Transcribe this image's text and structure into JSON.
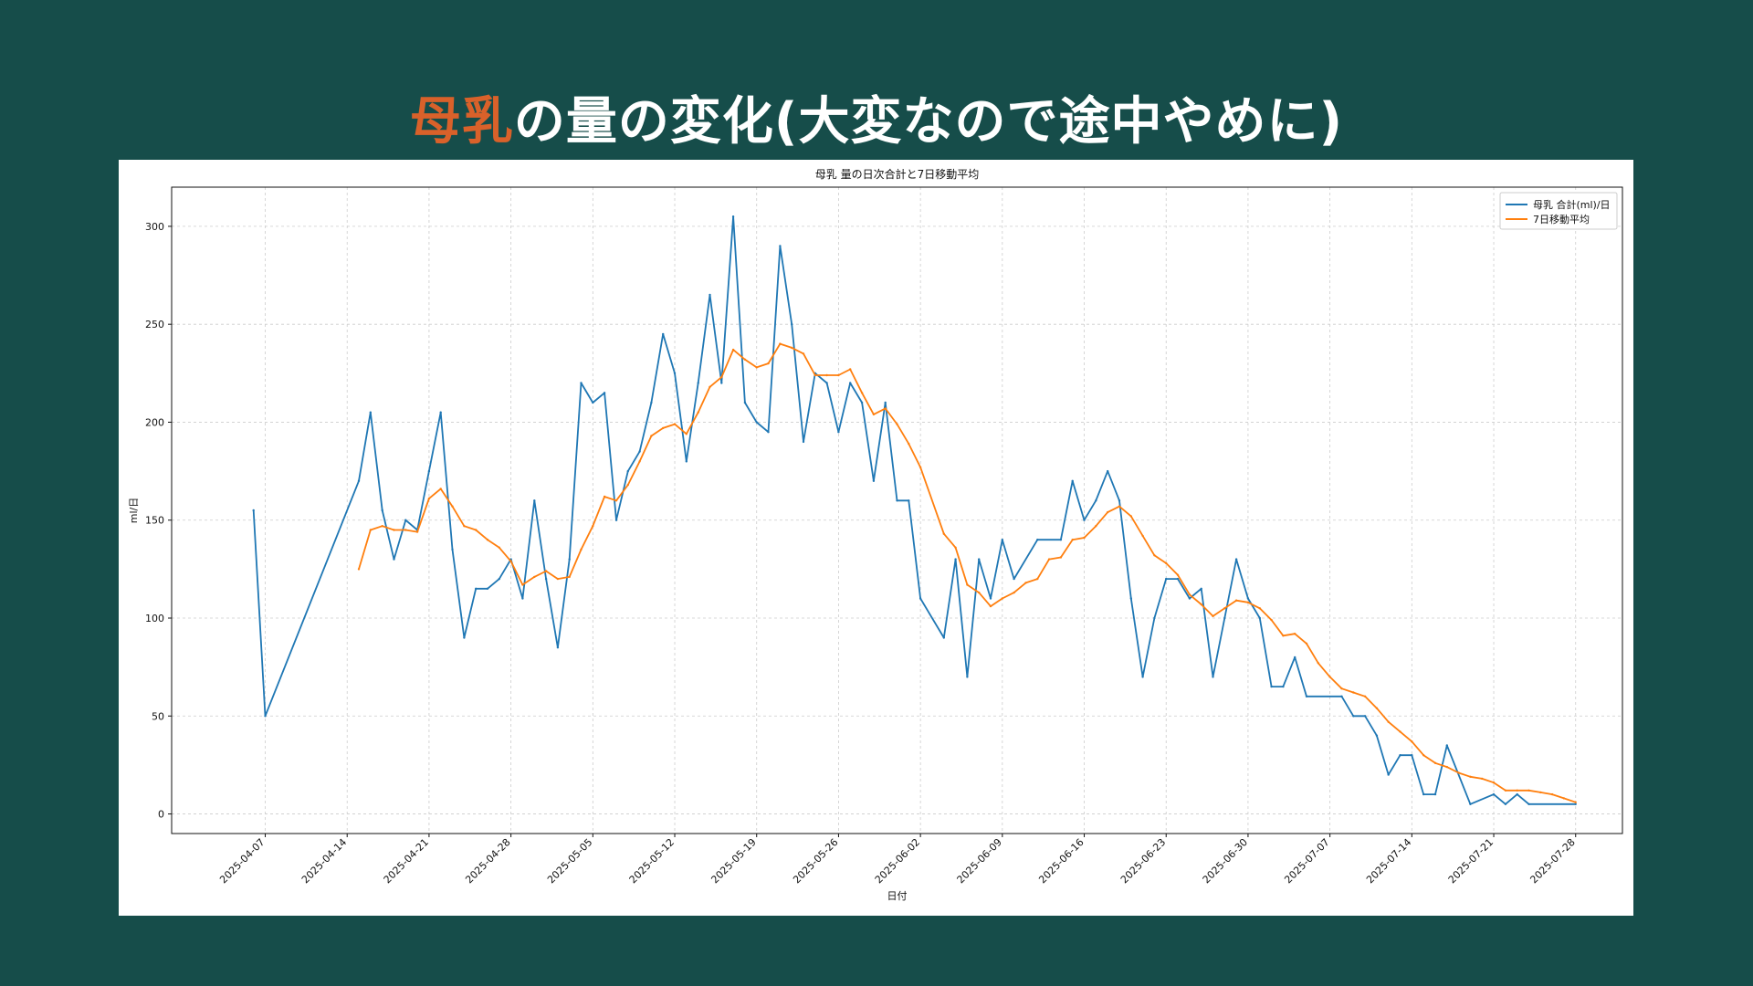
{
  "slide": {
    "title_accent": "母乳",
    "title_rest": "の量の変化(大変なので途中やめに)",
    "accent_color": "#d9612a",
    "background_color": "#164d4a"
  },
  "chart_data": {
    "type": "line",
    "title": "母乳 量の日次合計と7日移動平均",
    "xlabel": "日付",
    "ylabel": "ml/日",
    "x_range": [
      "2025-03-30",
      "2025-08-01"
    ],
    "ylim": [
      -10,
      320
    ],
    "yticks": [
      0,
      50,
      100,
      150,
      200,
      250,
      300
    ],
    "xticks": [
      "2025-04-07",
      "2025-04-14",
      "2025-04-21",
      "2025-04-28",
      "2025-05-05",
      "2025-05-12",
      "2025-05-19",
      "2025-05-26",
      "2025-06-02",
      "2025-06-09",
      "2025-06-16",
      "2025-06-23",
      "2025-06-30",
      "2025-07-07",
      "2025-07-14",
      "2025-07-21",
      "2025-07-28"
    ],
    "grid": true,
    "legend_position": "top-right",
    "series": [
      {
        "name": "母乳 合計(ml)/日",
        "color": "#1f77b4",
        "points": [
          [
            "2025-04-06",
            155
          ],
          [
            "2025-04-07",
            50
          ],
          [
            "2025-04-15",
            170
          ],
          [
            "2025-04-16",
            205
          ],
          [
            "2025-04-17",
            155
          ],
          [
            "2025-04-18",
            130
          ],
          [
            "2025-04-19",
            150
          ],
          [
            "2025-04-20",
            145
          ],
          [
            "2025-04-21",
            175
          ],
          [
            "2025-04-22",
            205
          ],
          [
            "2025-04-23",
            135
          ],
          [
            "2025-04-24",
            90
          ],
          [
            "2025-04-25",
            115
          ],
          [
            "2025-04-26",
            115
          ],
          [
            "2025-04-27",
            120
          ],
          [
            "2025-04-28",
            130
          ],
          [
            "2025-04-29",
            110
          ],
          [
            "2025-04-30",
            160
          ],
          [
            "2025-05-01",
            120
          ],
          [
            "2025-05-02",
            85
          ],
          [
            "2025-05-03",
            130
          ],
          [
            "2025-05-04",
            220
          ],
          [
            "2025-05-05",
            210
          ],
          [
            "2025-05-06",
            215
          ],
          [
            "2025-05-07",
            150
          ],
          [
            "2025-05-08",
            175
          ],
          [
            "2025-05-09",
            185
          ],
          [
            "2025-05-10",
            210
          ],
          [
            "2025-05-11",
            245
          ],
          [
            "2025-05-12",
            225
          ],
          [
            "2025-05-13",
            180
          ],
          [
            "2025-05-14",
            220
          ],
          [
            "2025-05-15",
            265
          ],
          [
            "2025-05-16",
            220
          ],
          [
            "2025-05-17",
            305
          ],
          [
            "2025-05-18",
            210
          ],
          [
            "2025-05-19",
            200
          ],
          [
            "2025-05-20",
            195
          ],
          [
            "2025-05-21",
            290
          ],
          [
            "2025-05-22",
            250
          ],
          [
            "2025-05-23",
            190
          ],
          [
            "2025-05-24",
            225
          ],
          [
            "2025-05-25",
            220
          ],
          [
            "2025-05-26",
            195
          ],
          [
            "2025-05-27",
            220
          ],
          [
            "2025-05-28",
            210
          ],
          [
            "2025-05-29",
            170
          ],
          [
            "2025-05-30",
            210
          ],
          [
            "2025-05-31",
            160
          ],
          [
            "2025-06-01",
            160
          ],
          [
            "2025-06-02",
            110
          ],
          [
            "2025-06-04",
            90
          ],
          [
            "2025-06-05",
            130
          ],
          [
            "2025-06-06",
            70
          ],
          [
            "2025-06-07",
            130
          ],
          [
            "2025-06-08",
            110
          ],
          [
            "2025-06-09",
            140
          ],
          [
            "2025-06-10",
            120
          ],
          [
            "2025-06-12",
            140
          ],
          [
            "2025-06-14",
            140
          ],
          [
            "2025-06-15",
            170
          ],
          [
            "2025-06-16",
            150
          ],
          [
            "2025-06-17",
            160
          ],
          [
            "2025-06-18",
            175
          ],
          [
            "2025-06-19",
            160
          ],
          [
            "2025-06-20",
            110
          ],
          [
            "2025-06-21",
            70
          ],
          [
            "2025-06-22",
            100
          ],
          [
            "2025-06-23",
            120
          ],
          [
            "2025-06-24",
            120
          ],
          [
            "2025-06-25",
            110
          ],
          [
            "2025-06-26",
            115
          ],
          [
            "2025-06-27",
            70
          ],
          [
            "2025-06-28",
            100
          ],
          [
            "2025-06-29",
            130
          ],
          [
            "2025-06-30",
            110
          ],
          [
            "2025-07-01",
            100
          ],
          [
            "2025-07-02",
            65
          ],
          [
            "2025-07-03",
            65
          ],
          [
            "2025-07-04",
            80
          ],
          [
            "2025-07-05",
            60
          ],
          [
            "2025-07-08",
            60
          ],
          [
            "2025-07-09",
            50
          ],
          [
            "2025-07-10",
            50
          ],
          [
            "2025-07-11",
            40
          ],
          [
            "2025-07-12",
            20
          ],
          [
            "2025-07-13",
            30
          ],
          [
            "2025-07-14",
            30
          ],
          [
            "2025-07-15",
            10
          ],
          [
            "2025-07-16",
            10
          ],
          [
            "2025-07-17",
            35
          ],
          [
            "2025-07-19",
            5
          ],
          [
            "2025-07-21",
            10
          ],
          [
            "2025-07-22",
            5
          ],
          [
            "2025-07-23",
            10
          ],
          [
            "2025-07-24",
            5
          ],
          [
            "2025-07-28",
            5
          ]
        ]
      },
      {
        "name": "7日移動平均",
        "color": "#ff7f0e",
        "points": [
          [
            "2025-04-15",
            125
          ],
          [
            "2025-04-16",
            145
          ],
          [
            "2025-04-17",
            147
          ],
          [
            "2025-04-18",
            145
          ],
          [
            "2025-04-19",
            145
          ],
          [
            "2025-04-20",
            144
          ],
          [
            "2025-04-21",
            161
          ],
          [
            "2025-04-22",
            166
          ],
          [
            "2025-04-23",
            157
          ],
          [
            "2025-04-24",
            147
          ],
          [
            "2025-04-25",
            145
          ],
          [
            "2025-04-26",
            140
          ],
          [
            "2025-04-27",
            136
          ],
          [
            "2025-04-28",
            129
          ],
          [
            "2025-04-29",
            117
          ],
          [
            "2025-04-30",
            121
          ],
          [
            "2025-05-01",
            124
          ],
          [
            "2025-05-02",
            120
          ],
          [
            "2025-05-03",
            121
          ],
          [
            "2025-05-04",
            135
          ],
          [
            "2025-05-05",
            147
          ],
          [
            "2025-05-06",
            162
          ],
          [
            "2025-05-07",
            160
          ],
          [
            "2025-05-08",
            168
          ],
          [
            "2025-05-09",
            180
          ],
          [
            "2025-05-10",
            193
          ],
          [
            "2025-05-11",
            197
          ],
          [
            "2025-05-12",
            199
          ],
          [
            "2025-05-13",
            194
          ],
          [
            "2025-05-14",
            205
          ],
          [
            "2025-05-15",
            218
          ],
          [
            "2025-05-16",
            223
          ],
          [
            "2025-05-17",
            237
          ],
          [
            "2025-05-18",
            232
          ],
          [
            "2025-05-19",
            228
          ],
          [
            "2025-05-20",
            230
          ],
          [
            "2025-05-21",
            240
          ],
          [
            "2025-05-22",
            238
          ],
          [
            "2025-05-23",
            235
          ],
          [
            "2025-05-24",
            224
          ],
          [
            "2025-05-25",
            224
          ],
          [
            "2025-05-26",
            224
          ],
          [
            "2025-05-27",
            227
          ],
          [
            "2025-05-28",
            215
          ],
          [
            "2025-05-29",
            204
          ],
          [
            "2025-05-30",
            207
          ],
          [
            "2025-05-31",
            199
          ],
          [
            "2025-06-01",
            189
          ],
          [
            "2025-06-02",
            177
          ],
          [
            "2025-06-04",
            143
          ],
          [
            "2025-06-05",
            136
          ],
          [
            "2025-06-06",
            117
          ],
          [
            "2025-06-07",
            113
          ],
          [
            "2025-06-08",
            106
          ],
          [
            "2025-06-09",
            110
          ],
          [
            "2025-06-10",
            113
          ],
          [
            "2025-06-11",
            118
          ],
          [
            "2025-06-12",
            120
          ],
          [
            "2025-06-13",
            130
          ],
          [
            "2025-06-14",
            131
          ],
          [
            "2025-06-15",
            140
          ],
          [
            "2025-06-16",
            141
          ],
          [
            "2025-06-17",
            147
          ],
          [
            "2025-06-18",
            154
          ],
          [
            "2025-06-19",
            157
          ],
          [
            "2025-06-20",
            152
          ],
          [
            "2025-06-21",
            142
          ],
          [
            "2025-06-22",
            132
          ],
          [
            "2025-06-23",
            128
          ],
          [
            "2025-06-24",
            122
          ],
          [
            "2025-06-25",
            112
          ],
          [
            "2025-06-26",
            107
          ],
          [
            "2025-06-27",
            101
          ],
          [
            "2025-06-28",
            105
          ],
          [
            "2025-06-29",
            109
          ],
          [
            "2025-06-30",
            108
          ],
          [
            "2025-07-01",
            105
          ],
          [
            "2025-07-02",
            99
          ],
          [
            "2025-07-03",
            91
          ],
          [
            "2025-07-04",
            92
          ],
          [
            "2025-07-05",
            87
          ],
          [
            "2025-07-06",
            77
          ],
          [
            "2025-07-07",
            70
          ],
          [
            "2025-07-08",
            64
          ],
          [
            "2025-07-09",
            62
          ],
          [
            "2025-07-10",
            60
          ],
          [
            "2025-07-11",
            54
          ],
          [
            "2025-07-12",
            47
          ],
          [
            "2025-07-13",
            42
          ],
          [
            "2025-07-14",
            37
          ],
          [
            "2025-07-15",
            30
          ],
          [
            "2025-07-16",
            26
          ],
          [
            "2025-07-17",
            24
          ],
          [
            "2025-07-18",
            21
          ],
          [
            "2025-07-19",
            19
          ],
          [
            "2025-07-20",
            18
          ],
          [
            "2025-07-21",
            16
          ],
          [
            "2025-07-22",
            12
          ],
          [
            "2025-07-23",
            12
          ],
          [
            "2025-07-24",
            12
          ],
          [
            "2025-07-25",
            11
          ],
          [
            "2025-07-26",
            10
          ],
          [
            "2025-07-27",
            8
          ],
          [
            "2025-07-28",
            6
          ]
        ]
      }
    ]
  }
}
